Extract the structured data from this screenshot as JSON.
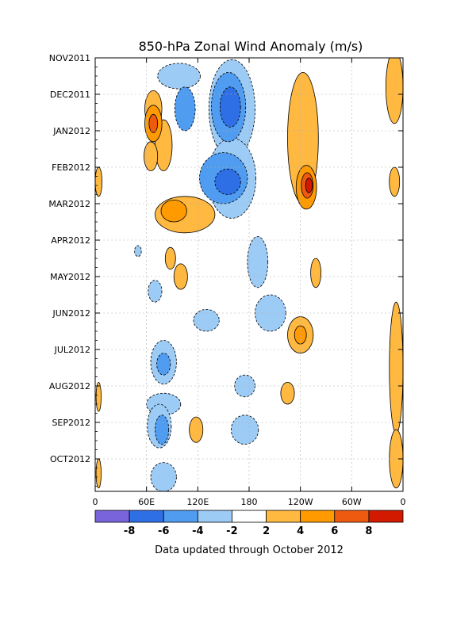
{
  "chart_data": {
    "type": "heatmap",
    "title": "850-hPa Zonal Wind Anomaly (m/s)",
    "footer": "Data updated through October 2012",
    "y_ticks": [
      "NOV2011",
      "DEC2011",
      "JAN2012",
      "FEB2012",
      "MAR2012",
      "APR2012",
      "MAY2012",
      "JUN2012",
      "JUL2012",
      "AUG2012",
      "SEP2012",
      "OCT2012"
    ],
    "x_ticks": [
      "0",
      "60E",
      "120E",
      "180",
      "120W",
      "60W",
      "0"
    ],
    "colorbar": {
      "tick_labels": [
        "-8",
        "-6",
        "-4",
        "-2",
        "2",
        "4",
        "6",
        "8"
      ],
      "colors": [
        "#7a64dc",
        "#2f6fe6",
        "#4f9cf0",
        "#9ccbf6",
        "#ffffff",
        "#ffb840",
        "#ff9a00",
        "#ee5a10",
        "#d21a00"
      ]
    },
    "features": [
      {
        "level": -4,
        "lon": 105,
        "month": 1.4,
        "rx": 12,
        "ry": 0.6
      },
      {
        "level": -2,
        "lon": 98,
        "month": 0.5,
        "rx": 25,
        "ry": 0.35
      },
      {
        "level": -6,
        "lon": 158,
        "month": 1.35,
        "rx": 12,
        "ry": 0.55
      },
      {
        "level": -4,
        "lon": 156,
        "month": 1.35,
        "rx": 20,
        "ry": 0.95
      },
      {
        "level": -2,
        "lon": 160,
        "month": 1.4,
        "rx": 27,
        "ry": 1.35
      },
      {
        "level": -2,
        "lon": 160,
        "month": 3.3,
        "rx": 28,
        "ry": 1.1
      },
      {
        "level": -4,
        "lon": 150,
        "month": 3.3,
        "rx": 28,
        "ry": 0.7
      },
      {
        "level": -6,
        "lon": 155,
        "month": 3.4,
        "rx": 15,
        "ry": 0.35
      },
      {
        "level": -2,
        "lon": 190,
        "month": 5.6,
        "rx": 12,
        "ry": 0.7
      },
      {
        "level": -2,
        "lon": 205,
        "month": 7.0,
        "rx": 18,
        "ry": 0.5
      },
      {
        "level": -2,
        "lon": 130,
        "month": 7.2,
        "rx": 15,
        "ry": 0.3
      },
      {
        "level": -2,
        "lon": 80,
        "month": 8.35,
        "rx": 15,
        "ry": 0.6
      },
      {
        "level": -4,
        "lon": 80,
        "month": 8.4,
        "rx": 8,
        "ry": 0.3
      },
      {
        "level": -2,
        "lon": 80,
        "month": 9.5,
        "rx": 20,
        "ry": 0.3
      },
      {
        "level": -2,
        "lon": 75,
        "month": 10.1,
        "rx": 14,
        "ry": 0.6
      },
      {
        "level": -4,
        "lon": 78,
        "month": 10.2,
        "rx": 8,
        "ry": 0.4
      },
      {
        "level": -2,
        "lon": 80,
        "month": 11.5,
        "rx": 15,
        "ry": 0.4
      },
      {
        "level": -2,
        "lon": 175,
        "month": 9.0,
        "rx": 12,
        "ry": 0.3
      },
      {
        "level": -2,
        "lon": 175,
        "month": 10.2,
        "rx": 16,
        "ry": 0.4
      },
      {
        "level": -2,
        "lon": 70,
        "month": 6.4,
        "rx": 8,
        "ry": 0.3
      },
      {
        "level": -2,
        "lon": 50,
        "month": 5.3,
        "rx": 4,
        "ry": 0.15
      },
      {
        "level": 2,
        "lon": 68,
        "month": 1.4,
        "rx": 10,
        "ry": 0.5
      },
      {
        "level": 2,
        "lon": 80,
        "month": 2.4,
        "rx": 10,
        "ry": 0.7
      },
      {
        "level": 2,
        "lon": 65,
        "month": 2.7,
        "rx": 8,
        "ry": 0.4
      },
      {
        "level": 4,
        "lon": 68,
        "month": 1.8,
        "rx": 10,
        "ry": 0.5
      },
      {
        "level": 6,
        "lon": 68,
        "month": 1.8,
        "rx": 5,
        "ry": 0.25
      },
      {
        "level": 2,
        "lon": 105,
        "month": 4.3,
        "rx": 35,
        "ry": 0.5
      },
      {
        "level": 4,
        "lon": 92,
        "month": 4.2,
        "rx": 15,
        "ry": 0.3
      },
      {
        "level": 2,
        "lon": 243,
        "month": 2.2,
        "rx": 18,
        "ry": 1.8
      },
      {
        "level": 4,
        "lon": 247,
        "month": 3.55,
        "rx": 12,
        "ry": 0.6
      },
      {
        "level": 6,
        "lon": 248,
        "month": 3.5,
        "rx": 7,
        "ry": 0.35
      },
      {
        "level": 8,
        "lon": 250,
        "month": 3.5,
        "rx": 4,
        "ry": 0.2
      },
      {
        "level": 2,
        "lon": 258,
        "month": 5.9,
        "rx": 6,
        "ry": 0.4
      },
      {
        "level": 2,
        "lon": 240,
        "month": 7.6,
        "rx": 15,
        "ry": 0.5
      },
      {
        "level": 4,
        "lon": 240,
        "month": 7.6,
        "rx": 7,
        "ry": 0.25
      },
      {
        "level": 2,
        "lon": 225,
        "month": 9.2,
        "rx": 8,
        "ry": 0.3
      },
      {
        "level": 2,
        "lon": 350,
        "month": 0.8,
        "rx": 10,
        "ry": 1.0
      },
      {
        "level": 2,
        "lon": 350,
        "month": 3.4,
        "rx": 6,
        "ry": 0.4
      },
      {
        "level": 2,
        "lon": 352,
        "month": 8.5,
        "rx": 8,
        "ry": 1.8
      },
      {
        "level": 2,
        "lon": 352,
        "month": 11.0,
        "rx": 8,
        "ry": 0.8
      },
      {
        "level": 2,
        "lon": 4,
        "month": 3.4,
        "rx": 4,
        "ry": 0.4
      },
      {
        "level": 2,
        "lon": 4,
        "month": 9.3,
        "rx": 3,
        "ry": 0.4
      },
      {
        "level": 2,
        "lon": 4,
        "month": 11.4,
        "rx": 3,
        "ry": 0.4
      },
      {
        "level": 2,
        "lon": 100,
        "month": 6.0,
        "rx": 8,
        "ry": 0.35
      },
      {
        "level": 2,
        "lon": 88,
        "month": 5.5,
        "rx": 6,
        "ry": 0.3
      },
      {
        "level": 2,
        "lon": 118,
        "month": 10.2,
        "rx": 8,
        "ry": 0.35
      }
    ]
  }
}
